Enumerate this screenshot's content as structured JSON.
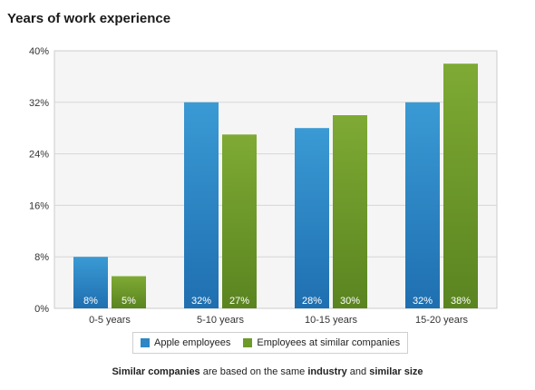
{
  "chart_data": {
    "type": "bar",
    "title": "Years of work experience",
    "categories": [
      "0-5 years",
      "5-10 years",
      "10-15 years",
      "15-20 years"
    ],
    "series": [
      {
        "name": "Apple employees",
        "values": [
          8,
          32,
          28,
          32
        ],
        "labels": [
          "8%",
          "32%",
          "28%",
          "32%"
        ],
        "color": "#2e87c4"
      },
      {
        "name": "Employees at similar companies",
        "values": [
          5,
          27,
          30,
          38
        ],
        "labels": [
          "5%",
          "27%",
          "30%",
          "38%"
        ],
        "color": "#6e9a2a"
      }
    ],
    "ylim": [
      0,
      40
    ],
    "yticks": [
      0,
      8,
      16,
      24,
      32,
      40
    ],
    "ytick_labels": [
      "0%",
      "8%",
      "16%",
      "24%",
      "32%",
      "40%"
    ],
    "grid": true,
    "legend_position": "bottom"
  },
  "footnote": {
    "part1": "Similar companies",
    "part2": " are based on the same ",
    "part3": "industry",
    "part4": " and ",
    "part5": "similar size"
  }
}
